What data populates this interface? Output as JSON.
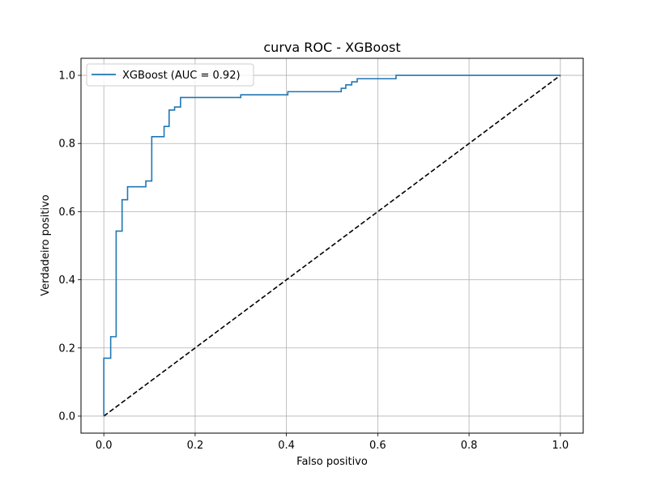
{
  "chart_data": {
    "type": "line",
    "title": "curva ROC - XGBoost",
    "xlabel": "Falso positivo",
    "ylabel": "Verdadeiro positivo",
    "xlim": [
      -0.05,
      1.05
    ],
    "ylim": [
      -0.05,
      1.05
    ],
    "xticks": [
      0.0,
      0.2,
      0.4,
      0.6,
      0.8,
      1.0
    ],
    "yticks": [
      0.0,
      0.2,
      0.4,
      0.6,
      0.8,
      1.0
    ],
    "xtick_labels": [
      "0.0",
      "0.2",
      "0.4",
      "0.6",
      "0.8",
      "1.0"
    ],
    "ytick_labels": [
      "0.0",
      "0.2",
      "0.4",
      "0.6",
      "0.8",
      "1.0"
    ],
    "grid": true,
    "legend_position": "top-left",
    "series": [
      {
        "name": "XGBoost (AUC = 0.92)",
        "color": "#1f77b4",
        "style": "solid",
        "x": [
          0.0,
          0.0,
          0.015,
          0.015,
          0.027,
          0.027,
          0.04,
          0.04,
          0.052,
          0.052,
          0.092,
          0.092,
          0.105,
          0.105,
          0.132,
          0.132,
          0.143,
          0.143,
          0.155,
          0.155,
          0.168,
          0.168,
          0.3,
          0.3,
          0.403,
          0.403,
          0.52,
          0.52,
          0.53,
          0.53,
          0.543,
          0.543,
          0.555,
          0.555,
          0.64,
          0.64,
          1.0
        ],
        "y": [
          0.0,
          0.17,
          0.17,
          0.233,
          0.233,
          0.543,
          0.543,
          0.635,
          0.635,
          0.673,
          0.673,
          0.69,
          0.69,
          0.82,
          0.82,
          0.85,
          0.85,
          0.898,
          0.898,
          0.907,
          0.907,
          0.935,
          0.935,
          0.943,
          0.943,
          0.952,
          0.952,
          0.962,
          0.962,
          0.972,
          0.972,
          0.981,
          0.981,
          0.99,
          0.99,
          1.0,
          1.0
        ]
      },
      {
        "name": "",
        "color": "#000000",
        "style": "dashed",
        "x": [
          0.0,
          1.0
        ],
        "y": [
          0.0,
          1.0
        ]
      }
    ]
  }
}
